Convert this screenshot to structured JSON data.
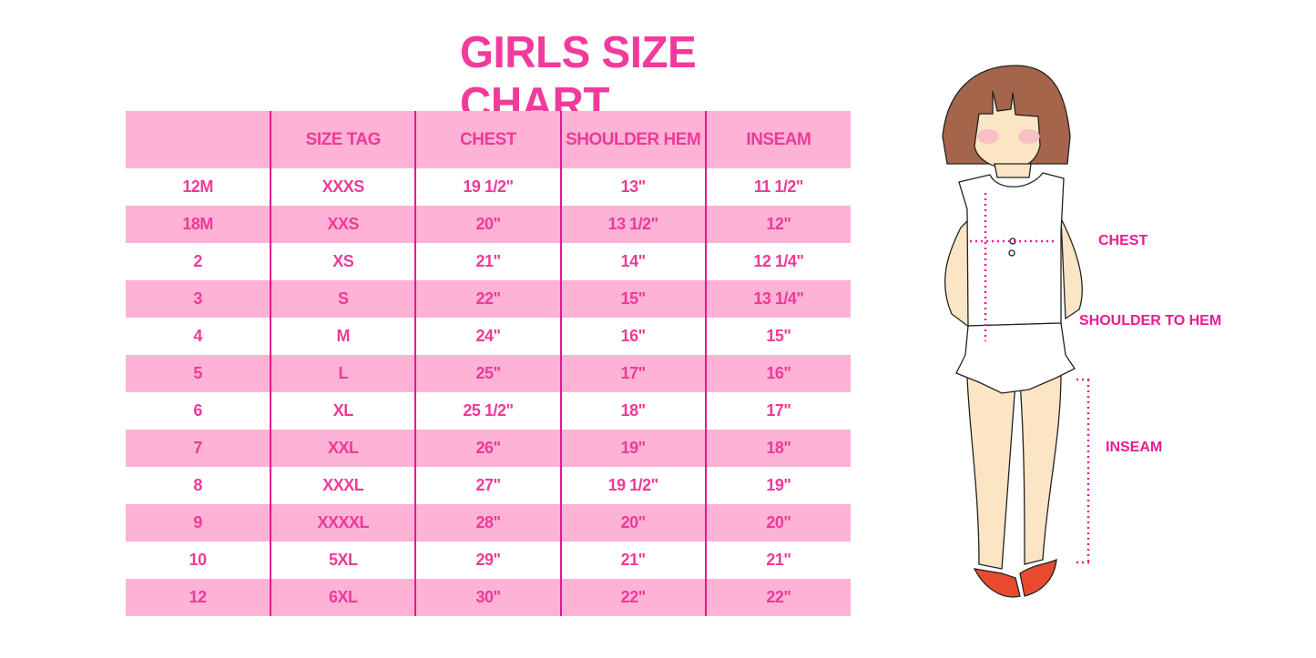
{
  "title": "GIRLS SIZE CHART",
  "table": {
    "headers": [
      "",
      "SIZE TAG",
      "CHEST",
      "SHOULDER HEM",
      "INSEAM"
    ],
    "rows": [
      [
        "12M",
        "XXXS",
        "19 1/2\"",
        "13\"",
        "11 1/2\""
      ],
      [
        "18M",
        "XXS",
        "20\"",
        "13 1/2\"",
        "12\""
      ],
      [
        "2",
        "XS",
        "21\"",
        "14\"",
        "12 1/4\""
      ],
      [
        "3",
        "S",
        "22\"",
        "15\"",
        "13 1/4\""
      ],
      [
        "4",
        "M",
        "24\"",
        "16\"",
        "15\""
      ],
      [
        "5",
        "L",
        "25\"",
        "17\"",
        "16\""
      ],
      [
        "6",
        "XL",
        "25 1/2\"",
        "18\"",
        "17\""
      ],
      [
        "7",
        "XXL",
        "26\"",
        "19\"",
        "18\""
      ],
      [
        "8",
        "XXXL",
        "27\"",
        "19 1/2\"",
        "19\""
      ],
      [
        "9",
        "XXXXL",
        "28\"",
        "20\"",
        "20\""
      ],
      [
        "10",
        "5XL",
        "29\"",
        "21\"",
        "21\""
      ],
      [
        "12",
        "6XL",
        "30\"",
        "22\"",
        "22\""
      ]
    ]
  },
  "figure": {
    "labels": {
      "chest": "CHEST",
      "shoulder_to_hem": "SHOULDER TO HEM",
      "inseam": "INSEAM"
    }
  },
  "colors": {
    "accent": "#ee3a98",
    "band": "#fdb2d6",
    "divider": "#e8168f"
  }
}
